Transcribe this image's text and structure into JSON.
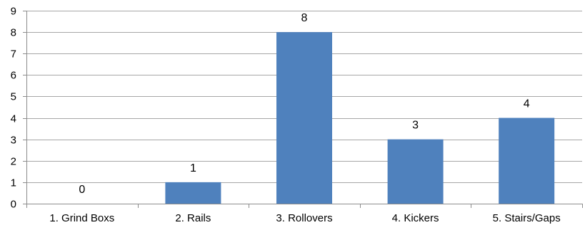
{
  "chart_data": {
    "type": "bar",
    "categories": [
      "1. Grind Boxs",
      "2. Rails",
      "3. Rollovers",
      "4. Kickers",
      "5. Stairs/Gaps"
    ],
    "values": [
      0,
      1,
      8,
      3,
      4
    ],
    "ylim": [
      0,
      9
    ],
    "yticks": [
      0,
      1,
      2,
      3,
      4,
      5,
      6,
      7,
      8,
      9
    ],
    "grid": true,
    "legend": "none",
    "data_labels": true,
    "bar_color": "#4f81bd"
  }
}
